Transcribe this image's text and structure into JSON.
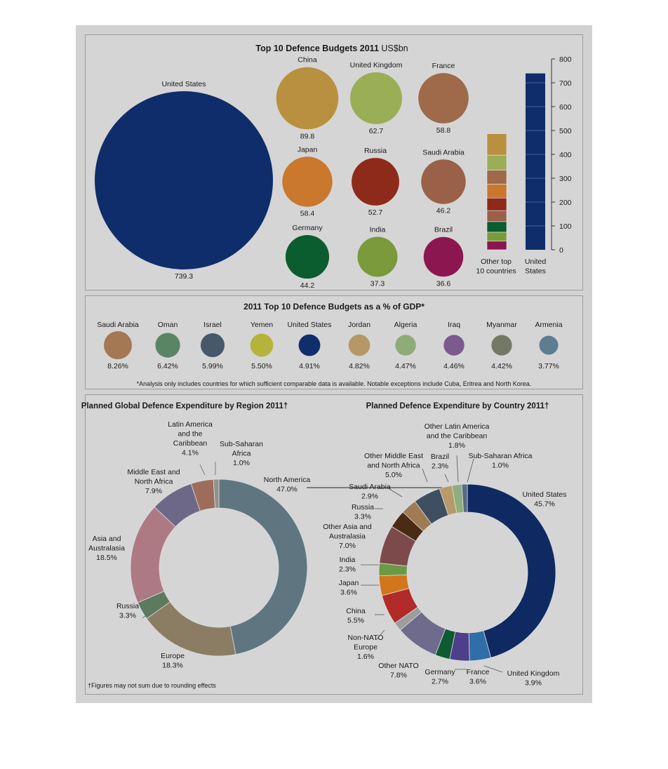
{
  "section1": {
    "title": "Top 10 Defence Budgets 2011",
    "unit": "US$bn",
    "bar_axis_ticks": [
      "800",
      "700",
      "600",
      "500",
      "400",
      "300",
      "200",
      "100",
      "0"
    ],
    "bar_labels": [
      [
        "Other top",
        "10 countries"
      ],
      [
        "United",
        "States"
      ]
    ]
  },
  "section2": {
    "title": "2011 Top 10 Defence Budgets as a % of GDP*",
    "footnote": "*Analysis only includes countries for which sufficient comparable data is available. Notable exceptions include Cuba, Eritrea and North Korea."
  },
  "section3": {
    "footnote": "†Figures may not sum due to rounding effects"
  },
  "chart_data": [
    {
      "type": "bubble",
      "title": "Top 10 Defence Budgets 2011 US$bn",
      "categories": [
        "United States",
        "China",
        "United Kingdom",
        "France",
        "Japan",
        "Russia",
        "Saudi Arabia",
        "Germany",
        "India",
        "Brazil"
      ],
      "values": [
        739.3,
        89.8,
        62.7,
        58.8,
        58.4,
        52.7,
        46.2,
        44.2,
        37.3,
        36.6
      ],
      "value_labels": [
        "739.3",
        "89.8",
        "62.7",
        "58.8",
        "58.4",
        "52.7",
        "46.2",
        "44.2",
        "37.3",
        "36.6"
      ],
      "colors": [
        "#0f2d6b",
        "#b89040",
        "#9aae55",
        "#9e6a4a",
        "#c9782e",
        "#8e2a1a",
        "#9a6148",
        "#0b5c2e",
        "#7a9a3c",
        "#8c1750"
      ]
    },
    {
      "type": "bar",
      "stacked": true,
      "ylim": [
        0,
        800
      ],
      "categories": [
        "Other top 10 countries",
        "United States"
      ],
      "stack_values": [
        36.6,
        37.3,
        44.2,
        46.2,
        52.7,
        58.4,
        58.8,
        62.7,
        89.8
      ],
      "stack_colors": [
        "#8c1750",
        "#7a9a3c",
        "#0b5c2e",
        "#9a6148",
        "#8e2a1a",
        "#c9782e",
        "#9e6a4a",
        "#9aae55",
        "#b89040"
      ],
      "values": [
        486.7,
        739.3
      ],
      "colors": [
        "#a32a22",
        "#0f2d6b"
      ]
    },
    {
      "type": "bubble",
      "title": "2011 Top 10 Defence Budgets as a % of GDP*",
      "categories": [
        "Saudi Arabia",
        "Oman",
        "Israel",
        "Yemen",
        "United States",
        "Jordan",
        "Algeria",
        "Iraq",
        "Myanmar",
        "Armenia"
      ],
      "values": [
        8.26,
        6.42,
        5.99,
        5.5,
        4.91,
        4.82,
        4.47,
        4.46,
        4.42,
        3.77
      ],
      "value_labels": [
        "8.26%",
        "6.42%",
        "5.99%",
        "5.50%",
        "4.91%",
        "4.82%",
        "4.47%",
        "4.46%",
        "4.42%",
        "3.77%"
      ],
      "colors": [
        "#a37853",
        "#5a8565",
        "#465869",
        "#b5b33a",
        "#102e6e",
        "#b59865",
        "#8eab78",
        "#7b5a8e",
        "#747866",
        "#5e7d91"
      ]
    },
    {
      "type": "pie",
      "donut": true,
      "title": "Planned Global Defence Expenditure by Region 2011†",
      "labels": [
        "North America",
        "Europe",
        "Russia",
        "Asia and Australasia",
        "Middle East and North Africa",
        "Latin America and the Caribbean",
        "Sub-Saharan Africa"
      ],
      "values": [
        47.0,
        18.3,
        3.3,
        18.5,
        7.9,
        4.1,
        1.0
      ],
      "value_labels": [
        "47.0%",
        "18.3%",
        "3.3%",
        "18.5%",
        "7.9%",
        "4.1%",
        "1.0%"
      ],
      "colors": [
        "#5f7680",
        "#8b7d63",
        "#5c7b5e",
        "#ad7a83",
        "#6e6888",
        "#9c6d5a",
        "#929292"
      ],
      "label_lines": [
        [
          "North America",
          "47.0%"
        ],
        [
          "Europe",
          "18.3%"
        ],
        [
          "Russia",
          "3.3%"
        ],
        [
          "Asia and",
          "Australasia",
          "18.5%"
        ],
        [
          "Middle East and",
          "North Africa",
          "7.9%"
        ],
        [
          "Latin America",
          "and the",
          "Caribbean",
          "4.1%"
        ],
        [
          "Sub-Saharan",
          "Africa",
          "1.0%"
        ]
      ]
    },
    {
      "type": "pie",
      "donut": true,
      "title": "Planned Defence Expenditure by Country 2011†",
      "labels": [
        "United States",
        "United Kingdom",
        "France",
        "Germany",
        "Other NATO",
        "Non-NATO Europe",
        "China",
        "Japan",
        "India",
        "Other Asia and Australasia",
        "Russia",
        "Saudi Arabia",
        "Other Middle East and North Africa",
        "Brazil",
        "Other Latin America and the Caribbean",
        "Sub-Saharan Africa"
      ],
      "values": [
        45.7,
        3.9,
        3.6,
        2.7,
        7.8,
        1.6,
        5.5,
        3.6,
        2.3,
        7.0,
        3.3,
        2.9,
        5.0,
        2.3,
        1.8,
        1.0
      ],
      "value_labels": [
        "45.7%",
        "3.9%",
        "3.6%",
        "2.7%",
        "7.8%",
        "1.6%",
        "5.5%",
        "3.6%",
        "2.3%",
        "7.0%",
        "3.3%",
        "2.9%",
        "5.0%",
        "2.3%",
        "1.8%",
        "1.0%"
      ],
      "colors": [
        "#0f2a62",
        "#2f6ea8",
        "#4d3f8a",
        "#0e5a32",
        "#6f6b8d",
        "#9a9e9c",
        "#b22a2a",
        "#d2761b",
        "#6c9a44",
        "#7c4a4a",
        "#4a2c14",
        "#a07a52",
        "#3f4f62",
        "#b89a6a",
        "#8fae7e",
        "#556a86"
      ],
      "label_lines": [
        [
          "United States",
          "45.7%"
        ],
        [
          "United Kingdom",
          "3.9%"
        ],
        [
          "France",
          "3.6%"
        ],
        [
          "Germany",
          "2.7%"
        ],
        [
          "Other NATO",
          "7.8%"
        ],
        [
          "Non-NATO",
          "Europe",
          "1.6%"
        ],
        [
          "China",
          "5.5%"
        ],
        [
          "Japan",
          "3.6%"
        ],
        [
          "India",
          "2.3%"
        ],
        [
          "Other Asia and",
          "Australasia",
          "7.0%"
        ],
        [
          "Russia",
          "3.3%"
        ],
        [
          "Saudi Arabia",
          "2.9%"
        ],
        [
          "Other Middle East",
          "and North Africa",
          "5.0%"
        ],
        [
          "Brazil",
          "2.3%"
        ],
        [
          "Other Latin America",
          "and the Caribbean",
          "1.8%"
        ],
        [
          "Sub-Saharan Africa",
          "1.0%"
        ]
      ]
    }
  ]
}
